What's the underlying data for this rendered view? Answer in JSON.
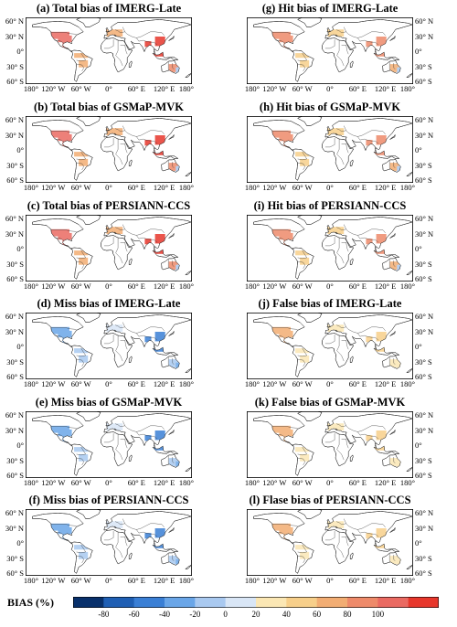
{
  "panels": [
    {
      "title": "(a) Total bias of IMERG-Late",
      "side": "left",
      "type": "total"
    },
    {
      "title": "(g) Hit bias of IMERG-Late",
      "side": "right",
      "type": "hit"
    },
    {
      "title": "(b) Total bias of GSMaP-MVK",
      "side": "left",
      "type": "total"
    },
    {
      "title": "(h) Hit bias of GSMaP-MVK",
      "side": "right",
      "type": "hit"
    },
    {
      "title": "(c) Total bias of PERSIANN-CCS",
      "side": "left",
      "type": "total"
    },
    {
      "title": "(i) Hit bias of PERSIANN-CCS",
      "side": "right",
      "type": "hit"
    },
    {
      "title": "(d) Miss bias of IMERG-Late",
      "side": "left",
      "type": "miss"
    },
    {
      "title": "(j) False bias of IMERG-Late",
      "side": "right",
      "type": "false"
    },
    {
      "title": "(e) Miss bias of GSMaP-MVK",
      "side": "left",
      "type": "miss"
    },
    {
      "title": "(k) False bias of GSMaP-MVK",
      "side": "right",
      "type": "false"
    },
    {
      "title": "(f) Miss bias of PERSIANN-CCS",
      "side": "left",
      "type": "miss"
    },
    {
      "title": "(l) Flase bias of PERSIANN-CCS",
      "side": "right",
      "type": "false"
    }
  ],
  "lat_labels": [
    "60° N",
    "30° N",
    "0°",
    "30° S",
    "60° S"
  ],
  "lon_labels": [
    "180°",
    "120° W",
    "60° W",
    "0°",
    "60° E",
    "120° E",
    "180°"
  ],
  "legend": {
    "title": "BIAS (%)",
    "ticks": [
      "-80",
      "-60",
      "-40",
      "-20",
      "0",
      "20",
      "40",
      "60",
      "80",
      "100"
    ],
    "colors": [
      "#08306b",
      "#1f5fb4",
      "#3a7fd5",
      "#6aa6e8",
      "#a9c9f0",
      "#d9e6f6",
      "#fbe7b4",
      "#f7cf8a",
      "#f2ad73",
      "#ee8a6a",
      "#ea6a62",
      "#e7372c"
    ]
  }
}
